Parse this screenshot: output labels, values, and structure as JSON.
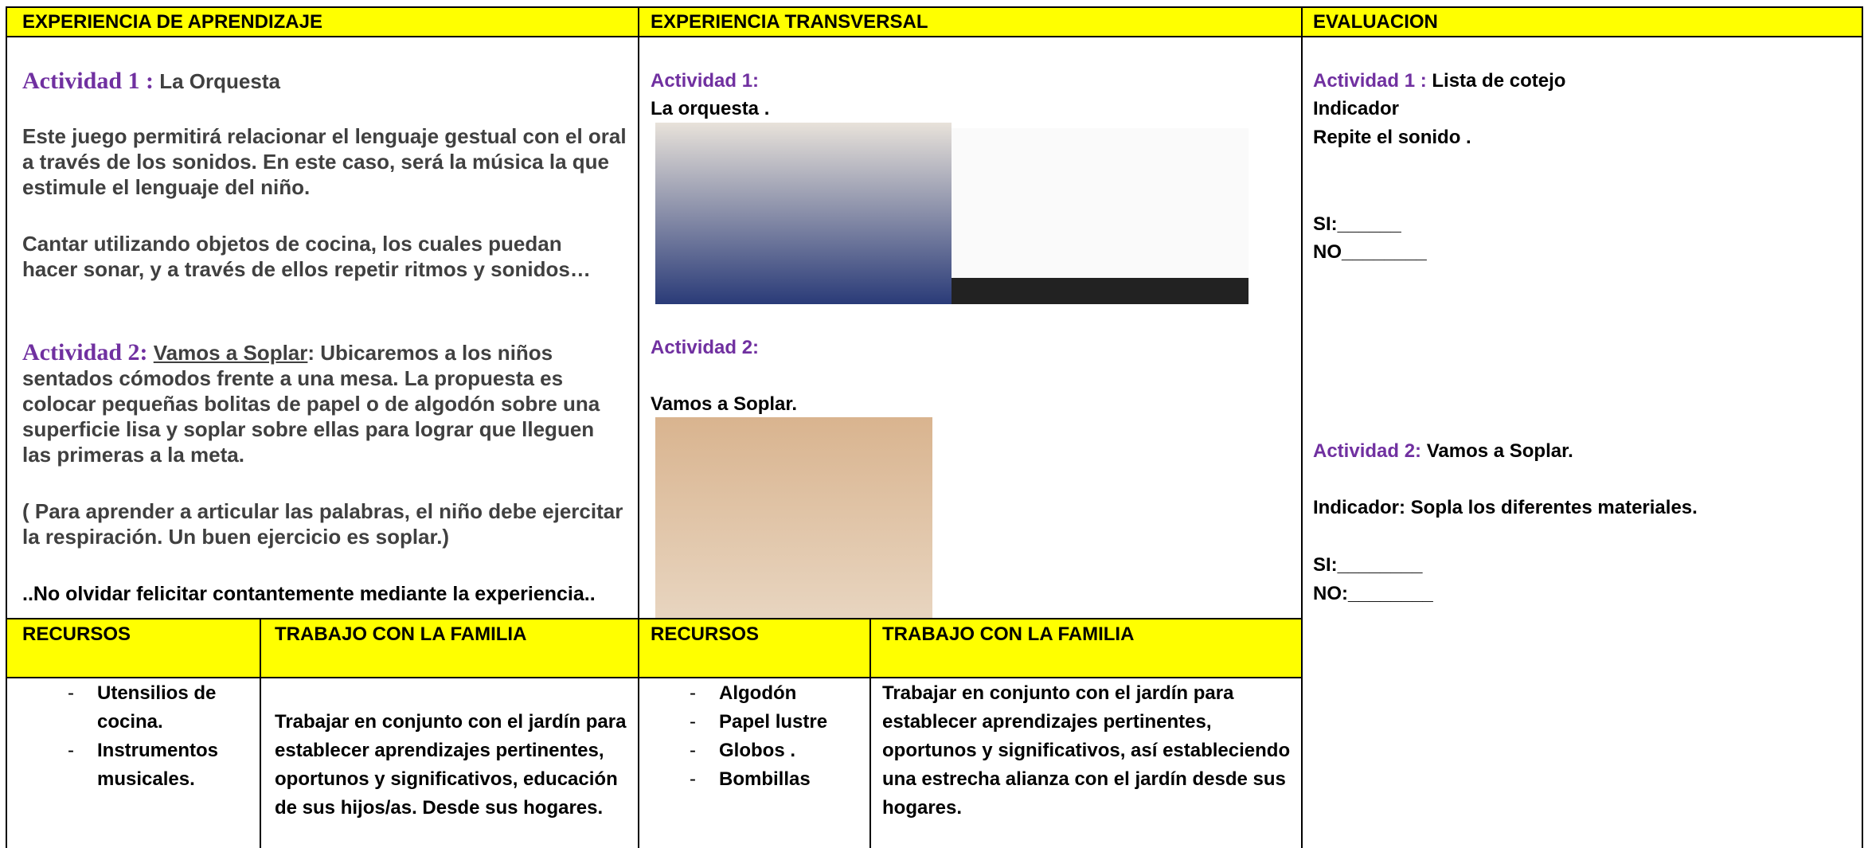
{
  "headers": [
    "EXPERIENCIA DE APRENDIZAJE",
    "EXPERIENCIA TRANSVERSAL",
    "EVALUACION"
  ],
  "aprendizaje": {
    "act1_label": "Actividad 1 :",
    "act1_title": "La Orquesta",
    "p1": "Este juego permitirá relacionar el lenguaje gestual con el oral a través de los sonidos. En este caso, será la música la que estimule el lenguaje del niño.",
    "p2": "Cantar utilizando objetos de  cocina, los cuales puedan hacer sonar, y a través de ellos repetir ritmos y sonidos…",
    "act2_label": "Actividad 2:",
    "act2_title": "Vamos a Soplar",
    "act2_text": ": Ubicaremos a los niños sentados cómodos frente a una mesa. La propuesta es colocar pequeñas bolitas de papel o de algodón sobre una superficie lisa y soplar sobre ellas para lograr que lleguen las primeras a la meta.",
    "p3": "( Para aprender a articular las palabras, el niño debe ejercitar la respiración. Un buen ejercicio es soplar.)",
    "closing": "..No olvidar felicitar contantemente mediante la experiencia.."
  },
  "transversal": {
    "act1_label": "Actividad 1:",
    "act1_title": "La orquesta .",
    "act2_label": "Actividad 2:",
    "act2_title": "Vamos a Soplar."
  },
  "evaluacion": {
    "act1_label": "Actividad 1 :",
    "act1_title": "Lista de cotejo",
    "indicator1": "Indicador",
    "indicator1_text": "Repite el sonido  .",
    "si1": "SI:______",
    "no1": "NO________",
    "act2_label": "Actividad 2:",
    "act2_title": "Vamos a Soplar.",
    "indicator2": "Indicador: Sopla los diferentes materiales.",
    "si2": "SI:________",
    "no2": "NO:________"
  },
  "bottom": [
    {
      "resources_header": "RECURSOS",
      "family_header": "TRABAJO CON LA FAMILIA",
      "resources": [
        "Utensilios de cocina.",
        "Instrumentos musicales."
      ],
      "family": "Trabajar en conjunto con el jardín para establecer aprendizajes pertinentes, oportunos y significativos, educación de sus hijos/as. Desde sus hogares."
    },
    {
      "resources_header": "RECURSOS",
      "family_header": "TRABAJO CON LA FAMILIA",
      "resources": [
        "Algodón",
        "Papel lustre",
        "Globos .",
        "Bombillas"
      ],
      "family": "Trabajar en conjunto con el jardín para establecer aprendizajes pertinentes, oportunos y significativos, así estableciendo una estrecha alianza con el jardín desde sus hogares."
    }
  ]
}
